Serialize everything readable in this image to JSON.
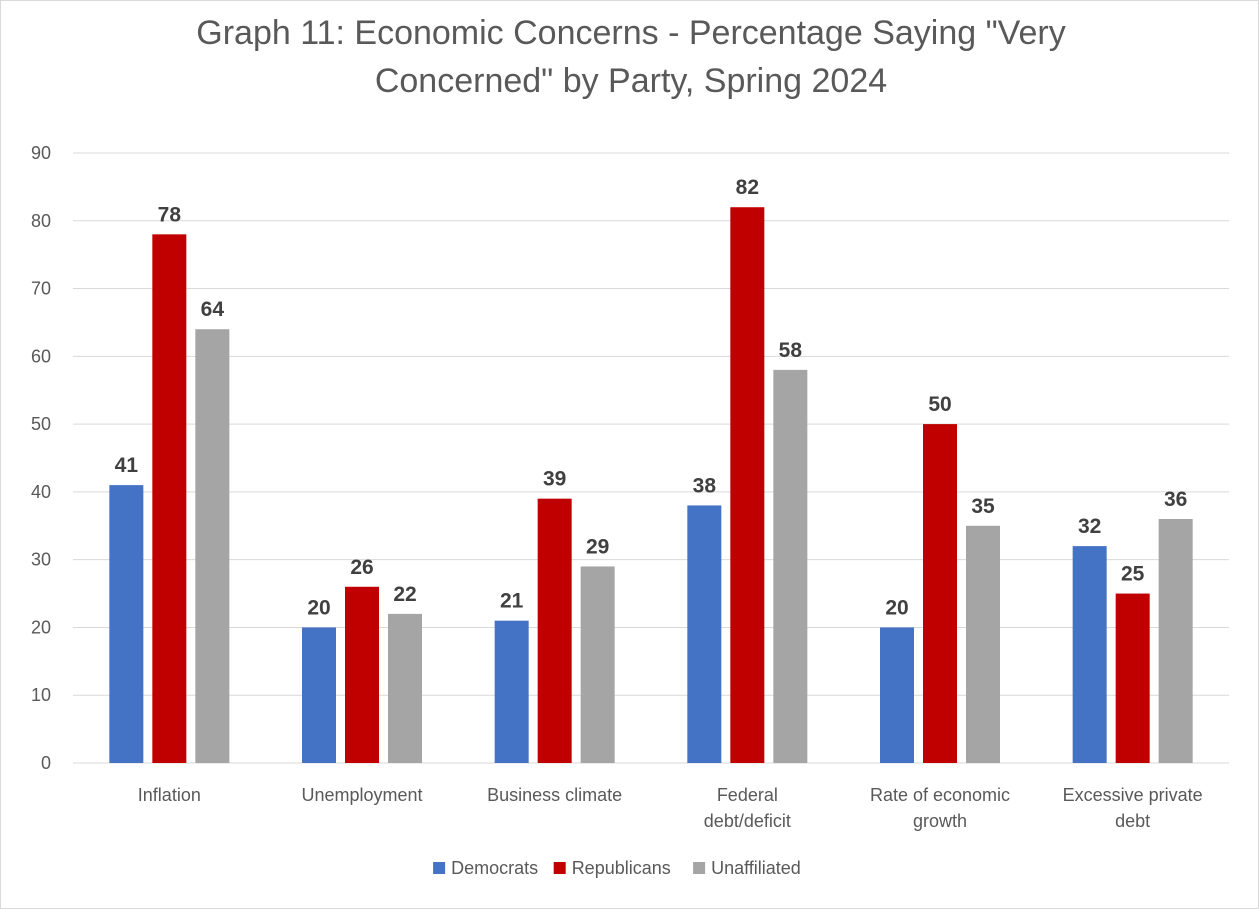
{
  "chart_data": {
    "type": "bar",
    "title": "Graph 11: Economic Concerns - Percentage Saying \"Very Concerned\" by Party, Spring 2024",
    "xlabel": "",
    "ylabel": "",
    "ylim": [
      0,
      90
    ],
    "yticks": [
      0,
      10,
      20,
      30,
      40,
      50,
      60,
      70,
      80,
      90
    ],
    "grid": true,
    "legend_position": "bottom",
    "categories": [
      "Inflation",
      "Unemployment",
      "Business climate",
      "Federal debt/deficit",
      "Rate of economic growth",
      "Excessive private debt"
    ],
    "category_lines": [
      [
        "Inflation"
      ],
      [
        "Unemployment"
      ],
      [
        "Business climate"
      ],
      [
        "Federal",
        "debt/deficit"
      ],
      [
        "Rate of economic",
        "growth"
      ],
      [
        "Excessive private",
        "debt"
      ]
    ],
    "series": [
      {
        "name": "Democrats",
        "color": "#4472c4",
        "values": [
          41,
          20,
          21,
          38,
          20,
          32
        ]
      },
      {
        "name": "Republicans",
        "color": "#c00000",
        "values": [
          78,
          26,
          39,
          82,
          50,
          25
        ]
      },
      {
        "name": "Unaffiliated",
        "color": "#a5a5a5",
        "values": [
          64,
          22,
          29,
          58,
          35,
          36
        ]
      }
    ],
    "gridline_color": "#d9d9d9"
  }
}
